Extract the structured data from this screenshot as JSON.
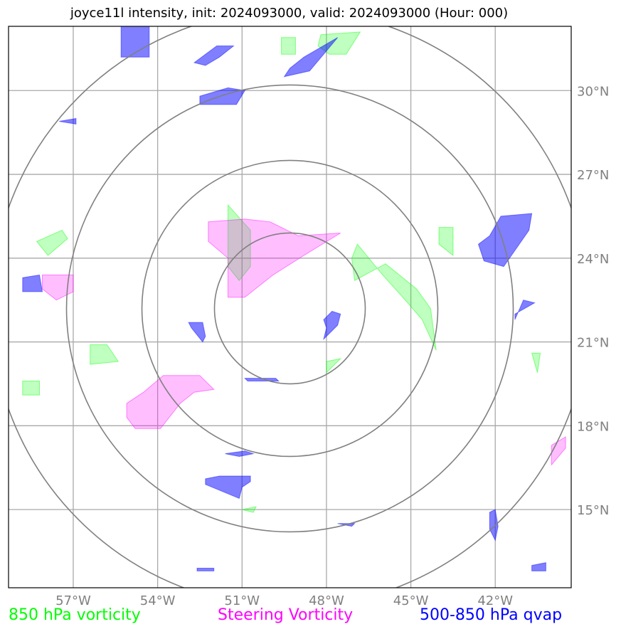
{
  "title": "joyce11l intensity, init: 2024093000, valid: 2024093000 (Hour: 000)",
  "legend": [
    {
      "label": "850 hPa vorticity",
      "color": "#00ff00"
    },
    {
      "label": "Steering Vorticity",
      "color": "#ff00ff"
    },
    {
      "label": "500-850 hPa qvap",
      "color": "#0000ff"
    }
  ],
  "chart_data": {
    "type": "map",
    "projection": "longitude-latitude",
    "xlim": [
      -59.3,
      -39.3
    ],
    "ylim": [
      12.2,
      32.3
    ],
    "x_ticks": [
      -57,
      -54,
      -51,
      -48,
      -45,
      -42
    ],
    "x_tick_labels": [
      "57°W",
      "54°W",
      "51°W",
      "48°W",
      "45°W",
      "42°W"
    ],
    "y_ticks": [
      15,
      18,
      21,
      24,
      27,
      30
    ],
    "y_tick_labels": [
      "15°N",
      "18°N",
      "21°N",
      "24°N",
      "27°N",
      "30°N"
    ],
    "grid": true,
    "range_rings": {
      "center": [
        -49.3,
        22.2
      ],
      "radii_deg_lat": [
        2.7,
        5.3,
        8.0,
        10.7
      ]
    },
    "series": [
      {
        "name": "850 hPa vorticity",
        "color": "#00ff00",
        "polygons": [
          [
            [
              -51.5,
              25.9
            ],
            [
              -50.7,
              25.0
            ],
            [
              -50.7,
              23.7
            ],
            [
              -51.1,
              23.2
            ],
            [
              -51.5,
              23.7
            ]
          ],
          [
            [
              -46.9,
              24.5
            ],
            [
              -46.0,
              23.4
            ],
            [
              -45.2,
              22.5
            ],
            [
              -44.6,
              21.8
            ],
            [
              -44.1,
              20.7
            ],
            [
              -44.3,
              22.2
            ],
            [
              -44.8,
              22.9
            ],
            [
              -45.9,
              23.8
            ],
            [
              -47.0,
              23.2
            ],
            [
              -47.1,
              24.0
            ]
          ],
          [
            [
              -44.0,
              25.1
            ],
            [
              -43.5,
              25.1
            ],
            [
              -43.5,
              24.1
            ],
            [
              -44.0,
              24.5
            ]
          ],
          [
            [
              -56.4,
              20.9
            ],
            [
              -55.8,
              20.9
            ],
            [
              -55.4,
              20.3
            ],
            [
              -56.4,
              20.2
            ]
          ],
          [
            [
              -58.8,
              19.6
            ],
            [
              -58.2,
              19.6
            ],
            [
              -58.2,
              19.1
            ],
            [
              -58.8,
              19.1
            ]
          ],
          [
            [
              -58.3,
              24.6
            ],
            [
              -57.4,
              25.0
            ],
            [
              -57.2,
              24.7
            ],
            [
              -57.9,
              24.1
            ]
          ],
          [
            [
              -48.2,
              32.0
            ],
            [
              -46.8,
              32.1
            ],
            [
              -47.3,
              31.3
            ],
            [
              -47.9,
              31.3
            ],
            [
              -48.3,
              31.6
            ]
          ],
          [
            [
              -49.6,
              31.9
            ],
            [
              -49.1,
              31.9
            ],
            [
              -49.1,
              31.3
            ],
            [
              -49.6,
              31.3
            ]
          ],
          [
            [
              -48.0,
              20.3
            ],
            [
              -47.5,
              20.4
            ],
            [
              -48.0,
              19.9
            ]
          ],
          [
            [
              -40.7,
              20.6
            ],
            [
              -40.4,
              20.6
            ],
            [
              -40.5,
              19.9
            ]
          ],
          [
            [
              -51.0,
              15.0
            ],
            [
              -50.5,
              15.1
            ],
            [
              -50.6,
              14.9
            ]
          ]
        ]
      },
      {
        "name": "Steering Vorticity",
        "color": "#ff00ff",
        "polygons": [
          [
            [
              -52.2,
              25.3
            ],
            [
              -50.9,
              25.4
            ],
            [
              -50.0,
              25.3
            ],
            [
              -49.0,
              24.8
            ],
            [
              -47.5,
              24.9
            ],
            [
              -48.8,
              24.1
            ],
            [
              -49.9,
              23.4
            ],
            [
              -50.9,
              22.6
            ],
            [
              -51.5,
              22.6
            ],
            [
              -51.5,
              24.0
            ],
            [
              -52.2,
              24.6
            ]
          ],
          [
            [
              -54.5,
              19.2
            ],
            [
              -53.8,
              19.8
            ],
            [
              -52.5,
              19.8
            ],
            [
              -52.0,
              19.3
            ],
            [
              -52.7,
              19.2
            ],
            [
              -53.2,
              18.8
            ],
            [
              -53.9,
              17.9
            ],
            [
              -54.8,
              17.9
            ],
            [
              -55.1,
              18.3
            ],
            [
              -55.1,
              18.8
            ]
          ],
          [
            [
              -58.1,
              23.4
            ],
            [
              -57.0,
              23.4
            ],
            [
              -57.0,
              22.8
            ],
            [
              -57.6,
              22.5
            ],
            [
              -58.1,
              22.9
            ]
          ],
          [
            [
              -40.0,
              17.3
            ],
            [
              -39.5,
              17.6
            ],
            [
              -39.5,
              17.2
            ],
            [
              -40.0,
              16.6
            ]
          ]
        ]
      },
      {
        "name": "500-850 hPa qvap",
        "color": "#0000ff",
        "polygons": [
          [
            [
              -55.3,
              32.3
            ],
            [
              -54.3,
              32.3
            ],
            [
              -54.3,
              31.2
            ],
            [
              -55.3,
              31.2
            ]
          ],
          [
            [
              -52.7,
              31.0
            ],
            [
              -51.9,
              31.6
            ],
            [
              -51.3,
              31.6
            ],
            [
              -51.8,
              31.2
            ],
            [
              -52.3,
              30.9
            ]
          ],
          [
            [
              -49.3,
              30.8
            ],
            [
              -48.8,
              31.2
            ],
            [
              -47.6,
              31.9
            ],
            [
              -48.1,
              31.3
            ],
            [
              -48.6,
              30.7
            ],
            [
              -49.5,
              30.5
            ]
          ],
          [
            [
              -52.5,
              29.8
            ],
            [
              -51.5,
              30.1
            ],
            [
              -50.9,
              30.0
            ],
            [
              -51.2,
              29.5
            ],
            [
              -52.5,
              29.5
            ]
          ],
          [
            [
              -42.2,
              24.8
            ],
            [
              -41.8,
              25.5
            ],
            [
              -40.7,
              25.6
            ],
            [
              -40.8,
              25.0
            ],
            [
              -41.7,
              23.7
            ],
            [
              -42.4,
              23.9
            ],
            [
              -42.6,
              24.5
            ]
          ],
          [
            [
              -58.8,
              23.3
            ],
            [
              -58.2,
              23.4
            ],
            [
              -58.1,
              22.8
            ],
            [
              -58.8,
              22.8
            ]
          ],
          [
            [
              -48.1,
              21.1
            ],
            [
              -47.6,
              21.6
            ],
            [
              -47.5,
              22.0
            ],
            [
              -47.8,
              22.1
            ],
            [
              -48.1,
              21.8
            ],
            [
              -48.0,
              21.5
            ]
          ],
          [
            [
              -52.9,
              21.7
            ],
            [
              -52.4,
              21.7
            ],
            [
              -52.3,
              21.2
            ],
            [
              -52.4,
              21.0
            ],
            [
              -52.8,
              21.5
            ]
          ],
          [
            [
              -41.3,
              21.8
            ],
            [
              -41.0,
              22.5
            ],
            [
              -40.6,
              22.4
            ],
            [
              -41.3,
              22.0
            ]
          ],
          [
            [
              -50.9,
              19.7
            ],
            [
              -49.8,
              19.7
            ],
            [
              -49.7,
              19.6
            ],
            [
              -50.8,
              19.6
            ]
          ],
          [
            [
              -51.6,
              17.0
            ],
            [
              -50.9,
              17.1
            ],
            [
              -50.6,
              17.0
            ],
            [
              -51.1,
              16.9
            ]
          ],
          [
            [
              -52.3,
              16.1
            ],
            [
              -51.8,
              16.2
            ],
            [
              -50.7,
              16.2
            ],
            [
              -50.7,
              16.0
            ],
            [
              -51.0,
              15.8
            ],
            [
              -51.1,
              15.4
            ],
            [
              -52.3,
              15.9
            ]
          ],
          [
            [
              -42.2,
              14.9
            ],
            [
              -42.0,
              15.0
            ],
            [
              -41.9,
              14.4
            ],
            [
              -42.0,
              13.9
            ],
            [
              -42.2,
              14.3
            ]
          ],
          [
            [
              -40.7,
              13.0
            ],
            [
              -40.2,
              13.1
            ],
            [
              -40.2,
              12.8
            ],
            [
              -40.7,
              12.8
            ]
          ],
          [
            [
              -52.6,
              12.9
            ],
            [
              -52.0,
              12.9
            ],
            [
              -52.0,
              12.8
            ],
            [
              -52.6,
              12.8
            ]
          ],
          [
            [
              -47.6,
              14.5
            ],
            [
              -47.0,
              14.5
            ],
            [
              -47.1,
              14.4
            ]
          ],
          [
            [
              -57.5,
              28.9
            ],
            [
              -56.9,
              29.0
            ],
            [
              -56.9,
              28.8
            ]
          ]
        ]
      }
    ]
  }
}
